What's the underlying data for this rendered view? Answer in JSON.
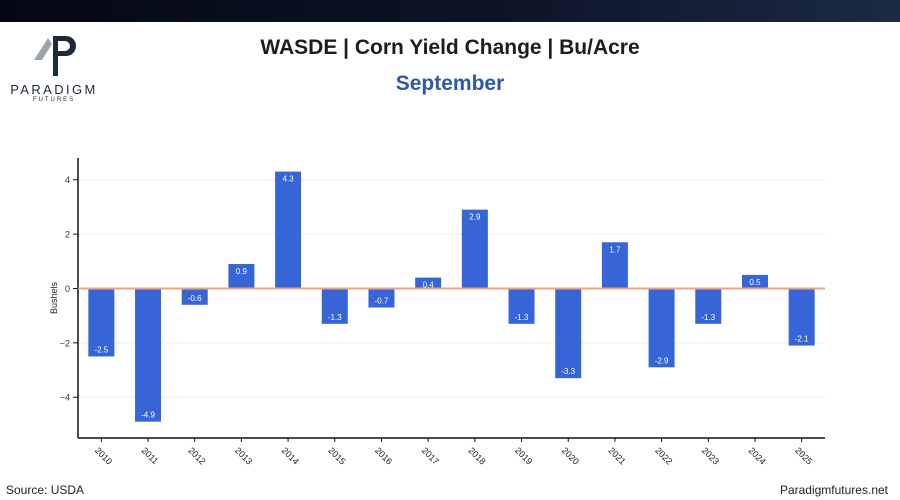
{
  "brand": {
    "name": "PARADIGM",
    "tagline": "FUTURES"
  },
  "title": "WASDE | Corn Yield Change | Bu/Acre",
  "subtitle": "September",
  "footer": {
    "source": "Source: USDA",
    "site": "Paradigmfutures.net"
  },
  "colors": {
    "bar": "#3565d6",
    "zero_line": "#f0a27e",
    "axis": "#111111",
    "grid": "#eeeeee",
    "subtitle": "#2f57ad"
  },
  "chart_data": {
    "type": "bar",
    "categories": [
      "2010",
      "2011",
      "2012",
      "2013",
      "2014",
      "2015",
      "2016",
      "2017",
      "2018",
      "2019",
      "2020",
      "2021",
      "2022",
      "2023",
      "2024",
      "2025"
    ],
    "values": [
      -2.5,
      -4.9,
      -0.6,
      0.9,
      4.3,
      -1.3,
      -0.7,
      0.4,
      2.9,
      -1.3,
      -3.3,
      1.7,
      -2.9,
      -1.3,
      0.5,
      -2.1
    ],
    "data_labels": [
      "-2.5",
      "-4.9",
      "-0.6",
      "0.9",
      "4.3",
      "-1.3",
      "-0.7",
      "0.4",
      "2.9",
      "-1.3",
      "-3.3",
      "1.7",
      "-2.9",
      "-1.3",
      "0.5",
      "-2.1"
    ],
    "xlabel": "",
    "ylabel": "Bushels",
    "ylim": [
      -5.5,
      4.8
    ],
    "yticks": [
      4,
      2,
      0,
      -2,
      -4
    ],
    "ytick_labels": [
      "4",
      "2",
      "0",
      "−2",
      "−4"
    ],
    "grid": true,
    "legend": "none"
  }
}
